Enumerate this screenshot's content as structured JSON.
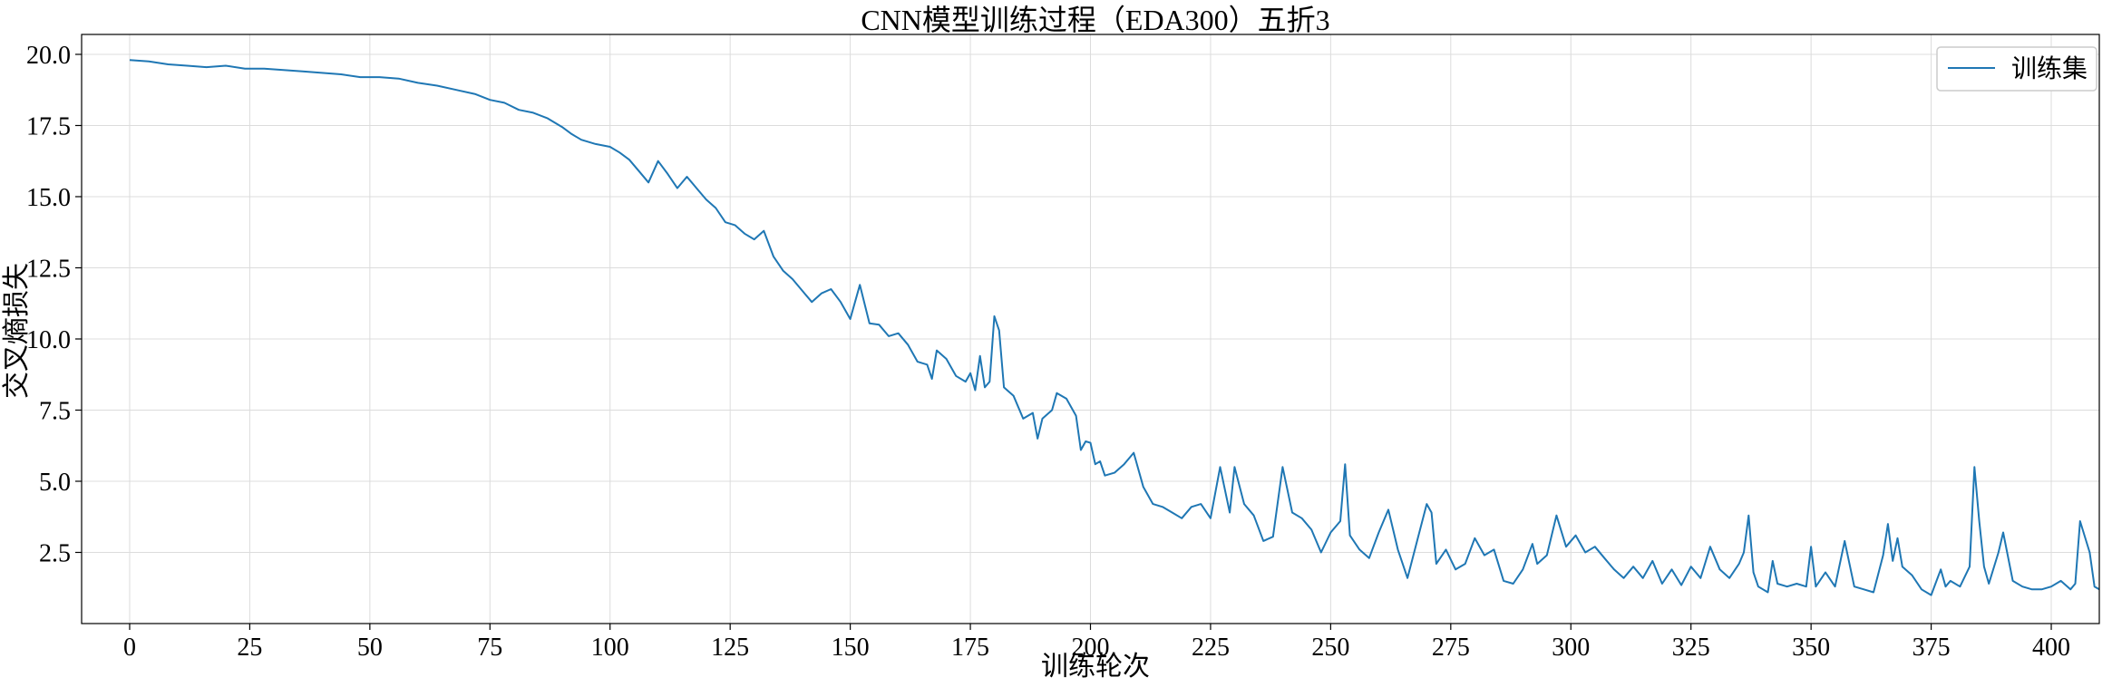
{
  "chart_data": {
    "type": "line",
    "title": "CNN模型训练过程（EDA300）五折3",
    "xlabel": "训练轮次",
    "ylabel": "交叉熵损失",
    "xlim": [
      -10,
      410
    ],
    "ylim": [
      0.0,
      20.7
    ],
    "xticks": [
      0,
      25,
      50,
      75,
      100,
      125,
      150,
      175,
      200,
      225,
      250,
      275,
      300,
      325,
      350,
      375,
      400
    ],
    "yticks": [
      2.5,
      5.0,
      7.5,
      10.0,
      12.5,
      15.0,
      17.5,
      20.0
    ],
    "xtick_labels": [
      "0",
      "25",
      "50",
      "75",
      "100",
      "125",
      "150",
      "175",
      "200",
      "225",
      "250",
      "275",
      "300",
      "325",
      "350",
      "375",
      "400"
    ],
    "ytick_labels": [
      "2.5",
      "5.0",
      "7.5",
      "10.0",
      "12.5",
      "15.0",
      "17.5",
      "20.0"
    ],
    "grid": true,
    "legend_position": "upper right",
    "series": [
      {
        "name": "训练集",
        "color": "#1f77b4",
        "points": [
          [
            0,
            19.8
          ],
          [
            4,
            19.75
          ],
          [
            8,
            19.65
          ],
          [
            12,
            19.6
          ],
          [
            16,
            19.55
          ],
          [
            20,
            19.6
          ],
          [
            24,
            19.5
          ],
          [
            28,
            19.5
          ],
          [
            32,
            19.45
          ],
          [
            36,
            19.4
          ],
          [
            40,
            19.35
          ],
          [
            44,
            19.3
          ],
          [
            48,
            19.2
          ],
          [
            52,
            19.2
          ],
          [
            56,
            19.15
          ],
          [
            60,
            19.0
          ],
          [
            64,
            18.9
          ],
          [
            68,
            18.75
          ],
          [
            72,
            18.6
          ],
          [
            75,
            18.4
          ],
          [
            78,
            18.3
          ],
          [
            81,
            18.05
          ],
          [
            84,
            17.95
          ],
          [
            87,
            17.75
          ],
          [
            90,
            17.45
          ],
          [
            92,
            17.2
          ],
          [
            94,
            17.0
          ],
          [
            97,
            16.85
          ],
          [
            100,
            16.75
          ],
          [
            102,
            16.55
          ],
          [
            104,
            16.3
          ],
          [
            106,
            15.9
          ],
          [
            108,
            15.5
          ],
          [
            110,
            16.25
          ],
          [
            112,
            15.8
          ],
          [
            114,
            15.3
          ],
          [
            116,
            15.7
          ],
          [
            118,
            15.3
          ],
          [
            120,
            14.9
          ],
          [
            122,
            14.6
          ],
          [
            124,
            14.1
          ],
          [
            126,
            14.0
          ],
          [
            128,
            13.7
          ],
          [
            130,
            13.5
          ],
          [
            132,
            13.8
          ],
          [
            134,
            12.9
          ],
          [
            136,
            12.4
          ],
          [
            138,
            12.1
          ],
          [
            140,
            11.7
          ],
          [
            142,
            11.3
          ],
          [
            144,
            11.6
          ],
          [
            146,
            11.75
          ],
          [
            148,
            11.3
          ],
          [
            150,
            10.7
          ],
          [
            152,
            11.9
          ],
          [
            154,
            10.55
          ],
          [
            156,
            10.5
          ],
          [
            158,
            10.1
          ],
          [
            160,
            10.2
          ],
          [
            162,
            9.8
          ],
          [
            164,
            9.2
          ],
          [
            166,
            9.1
          ],
          [
            167,
            8.6
          ],
          [
            168,
            9.6
          ],
          [
            170,
            9.3
          ],
          [
            172,
            8.7
          ],
          [
            174,
            8.5
          ],
          [
            175,
            8.8
          ],
          [
            176,
            8.2
          ],
          [
            177,
            9.4
          ],
          [
            178,
            8.3
          ],
          [
            179,
            8.5
          ],
          [
            180,
            10.8
          ],
          [
            181,
            10.3
          ],
          [
            182,
            8.3
          ],
          [
            184,
            8.0
          ],
          [
            186,
            7.2
          ],
          [
            188,
            7.4
          ],
          [
            189,
            6.5
          ],
          [
            190,
            7.2
          ],
          [
            192,
            7.5
          ],
          [
            193,
            8.1
          ],
          [
            195,
            7.9
          ],
          [
            197,
            7.3
          ],
          [
            198,
            6.1
          ],
          [
            199,
            6.4
          ],
          [
            200,
            6.35
          ],
          [
            201,
            5.6
          ],
          [
            202,
            5.7
          ],
          [
            203,
            5.2
          ],
          [
            205,
            5.3
          ],
          [
            207,
            5.6
          ],
          [
            209,
            6.0
          ],
          [
            211,
            4.8
          ],
          [
            213,
            4.2
          ],
          [
            215,
            4.1
          ],
          [
            217,
            3.9
          ],
          [
            219,
            3.7
          ],
          [
            221,
            4.1
          ],
          [
            223,
            4.2
          ],
          [
            225,
            3.7
          ],
          [
            227,
            5.5
          ],
          [
            229,
            3.9
          ],
          [
            230,
            5.5
          ],
          [
            232,
            4.2
          ],
          [
            234,
            3.8
          ],
          [
            236,
            2.9
          ],
          [
            238,
            3.05
          ],
          [
            240,
            5.5
          ],
          [
            242,
            3.9
          ],
          [
            244,
            3.7
          ],
          [
            246,
            3.3
          ],
          [
            248,
            2.5
          ],
          [
            250,
            3.2
          ],
          [
            252,
            3.6
          ],
          [
            253,
            5.6
          ],
          [
            254,
            3.1
          ],
          [
            256,
            2.6
          ],
          [
            258,
            2.3
          ],
          [
            260,
            3.2
          ],
          [
            262,
            4.0
          ],
          [
            264,
            2.6
          ],
          [
            266,
            1.6
          ],
          [
            268,
            2.9
          ],
          [
            270,
            4.2
          ],
          [
            271,
            3.9
          ],
          [
            272,
            2.1
          ],
          [
            274,
            2.6
          ],
          [
            276,
            1.9
          ],
          [
            278,
            2.1
          ],
          [
            280,
            3.0
          ],
          [
            282,
            2.4
          ],
          [
            284,
            2.6
          ],
          [
            286,
            1.5
          ],
          [
            288,
            1.4
          ],
          [
            290,
            1.9
          ],
          [
            292,
            2.8
          ],
          [
            293,
            2.1
          ],
          [
            295,
            2.4
          ],
          [
            297,
            3.8
          ],
          [
            299,
            2.7
          ],
          [
            301,
            3.1
          ],
          [
            303,
            2.5
          ],
          [
            305,
            2.7
          ],
          [
            307,
            2.3
          ],
          [
            309,
            1.9
          ],
          [
            311,
            1.6
          ],
          [
            313,
            2.0
          ],
          [
            315,
            1.6
          ],
          [
            317,
            2.2
          ],
          [
            319,
            1.4
          ],
          [
            321,
            1.9
          ],
          [
            323,
            1.35
          ],
          [
            325,
            2.0
          ],
          [
            327,
            1.6
          ],
          [
            329,
            2.7
          ],
          [
            331,
            1.9
          ],
          [
            333,
            1.6
          ],
          [
            335,
            2.1
          ],
          [
            336,
            2.5
          ],
          [
            337,
            3.8
          ],
          [
            338,
            1.8
          ],
          [
            339,
            1.3
          ],
          [
            341,
            1.1
          ],
          [
            342,
            2.2
          ],
          [
            343,
            1.4
          ],
          [
            345,
            1.3
          ],
          [
            347,
            1.4
          ],
          [
            349,
            1.3
          ],
          [
            350,
            2.7
          ],
          [
            351,
            1.3
          ],
          [
            353,
            1.8
          ],
          [
            355,
            1.3
          ],
          [
            357,
            2.9
          ],
          [
            359,
            1.3
          ],
          [
            361,
            1.2
          ],
          [
            363,
            1.1
          ],
          [
            365,
            2.4
          ],
          [
            366,
            3.5
          ],
          [
            367,
            2.2
          ],
          [
            368,
            3.0
          ],
          [
            369,
            2.0
          ],
          [
            371,
            1.7
          ],
          [
            373,
            1.2
          ],
          [
            375,
            1.0
          ],
          [
            377,
            1.9
          ],
          [
            378,
            1.3
          ],
          [
            379,
            1.5
          ],
          [
            381,
            1.3
          ],
          [
            383,
            2.0
          ],
          [
            384,
            5.5
          ],
          [
            385,
            3.6
          ],
          [
            386,
            2.0
          ],
          [
            387,
            1.4
          ],
          [
            389,
            2.5
          ],
          [
            390,
            3.2
          ],
          [
            392,
            1.5
          ],
          [
            394,
            1.3
          ],
          [
            396,
            1.2
          ],
          [
            398,
            1.2
          ],
          [
            400,
            1.3
          ],
          [
            402,
            1.5
          ],
          [
            404,
            1.2
          ],
          [
            405,
            1.4
          ],
          [
            406,
            3.6
          ],
          [
            408,
            2.5
          ],
          [
            409,
            1.3
          ],
          [
            410,
            1.2
          ]
        ]
      }
    ]
  }
}
